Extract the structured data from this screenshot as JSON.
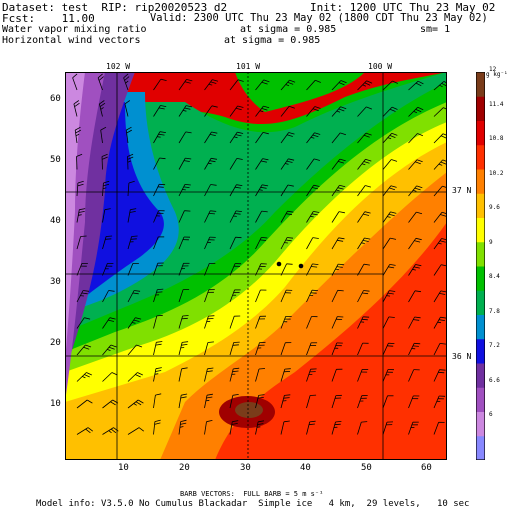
{
  "header": {
    "dataset": "Dataset: test  RIP: rip20020523 d2",
    "init": "Init: 1200 UTC Thu 23 May 02",
    "fcst": "Fcst:    11.00",
    "valid": "Valid: 2300 UTC Thu 23 May 02 (1800 CDT Thu 23 May 02)",
    "field": "Water vapor mixing ratio",
    "sigma1": "at sigma = 0.985",
    "sm": "sm= 1",
    "vectors": "Horizontal wind vectors",
    "sigma2": "at sigma = 0.985"
  },
  "map": {
    "longitudes": [
      "102 W",
      "101 W",
      "100 W"
    ],
    "latitudes": [
      "37 N",
      "36 N"
    ],
    "x_ticks": [
      "10",
      "20",
      "30",
      "40",
      "50",
      "60"
    ],
    "y_ticks": [
      "10",
      "20",
      "30",
      "40",
      "50",
      "60"
    ],
    "x_range": [
      1,
      64
    ],
    "y_range": [
      1,
      64
    ]
  },
  "colorbar": {
    "unit": "g kg⁻¹",
    "labels": [
      "6",
      "6.6",
      "7.2",
      "7.8",
      "8.4",
      "9",
      "9.6",
      "10.2",
      "10.8",
      "11.4",
      "12"
    ],
    "colors": [
      "#8888ff",
      "#cc88e0",
      "#a050c0",
      "#7030a0",
      "#1010e0",
      "#0090d0",
      "#00b050",
      "#00c000",
      "#80e000",
      "#ffff00",
      "#ffc000",
      "#ff8000",
      "#ff3000",
      "#e00000",
      "#a00000",
      "#7a3c1a"
    ]
  },
  "footer": {
    "barbs": "BARB VECTORS:  FULL BARB = 5 m s⁻¹",
    "model": "Model info: V3.5.0 No Cumulus Blackadar  Simple ice   4 km,  29 levels,   10 sec"
  }
}
